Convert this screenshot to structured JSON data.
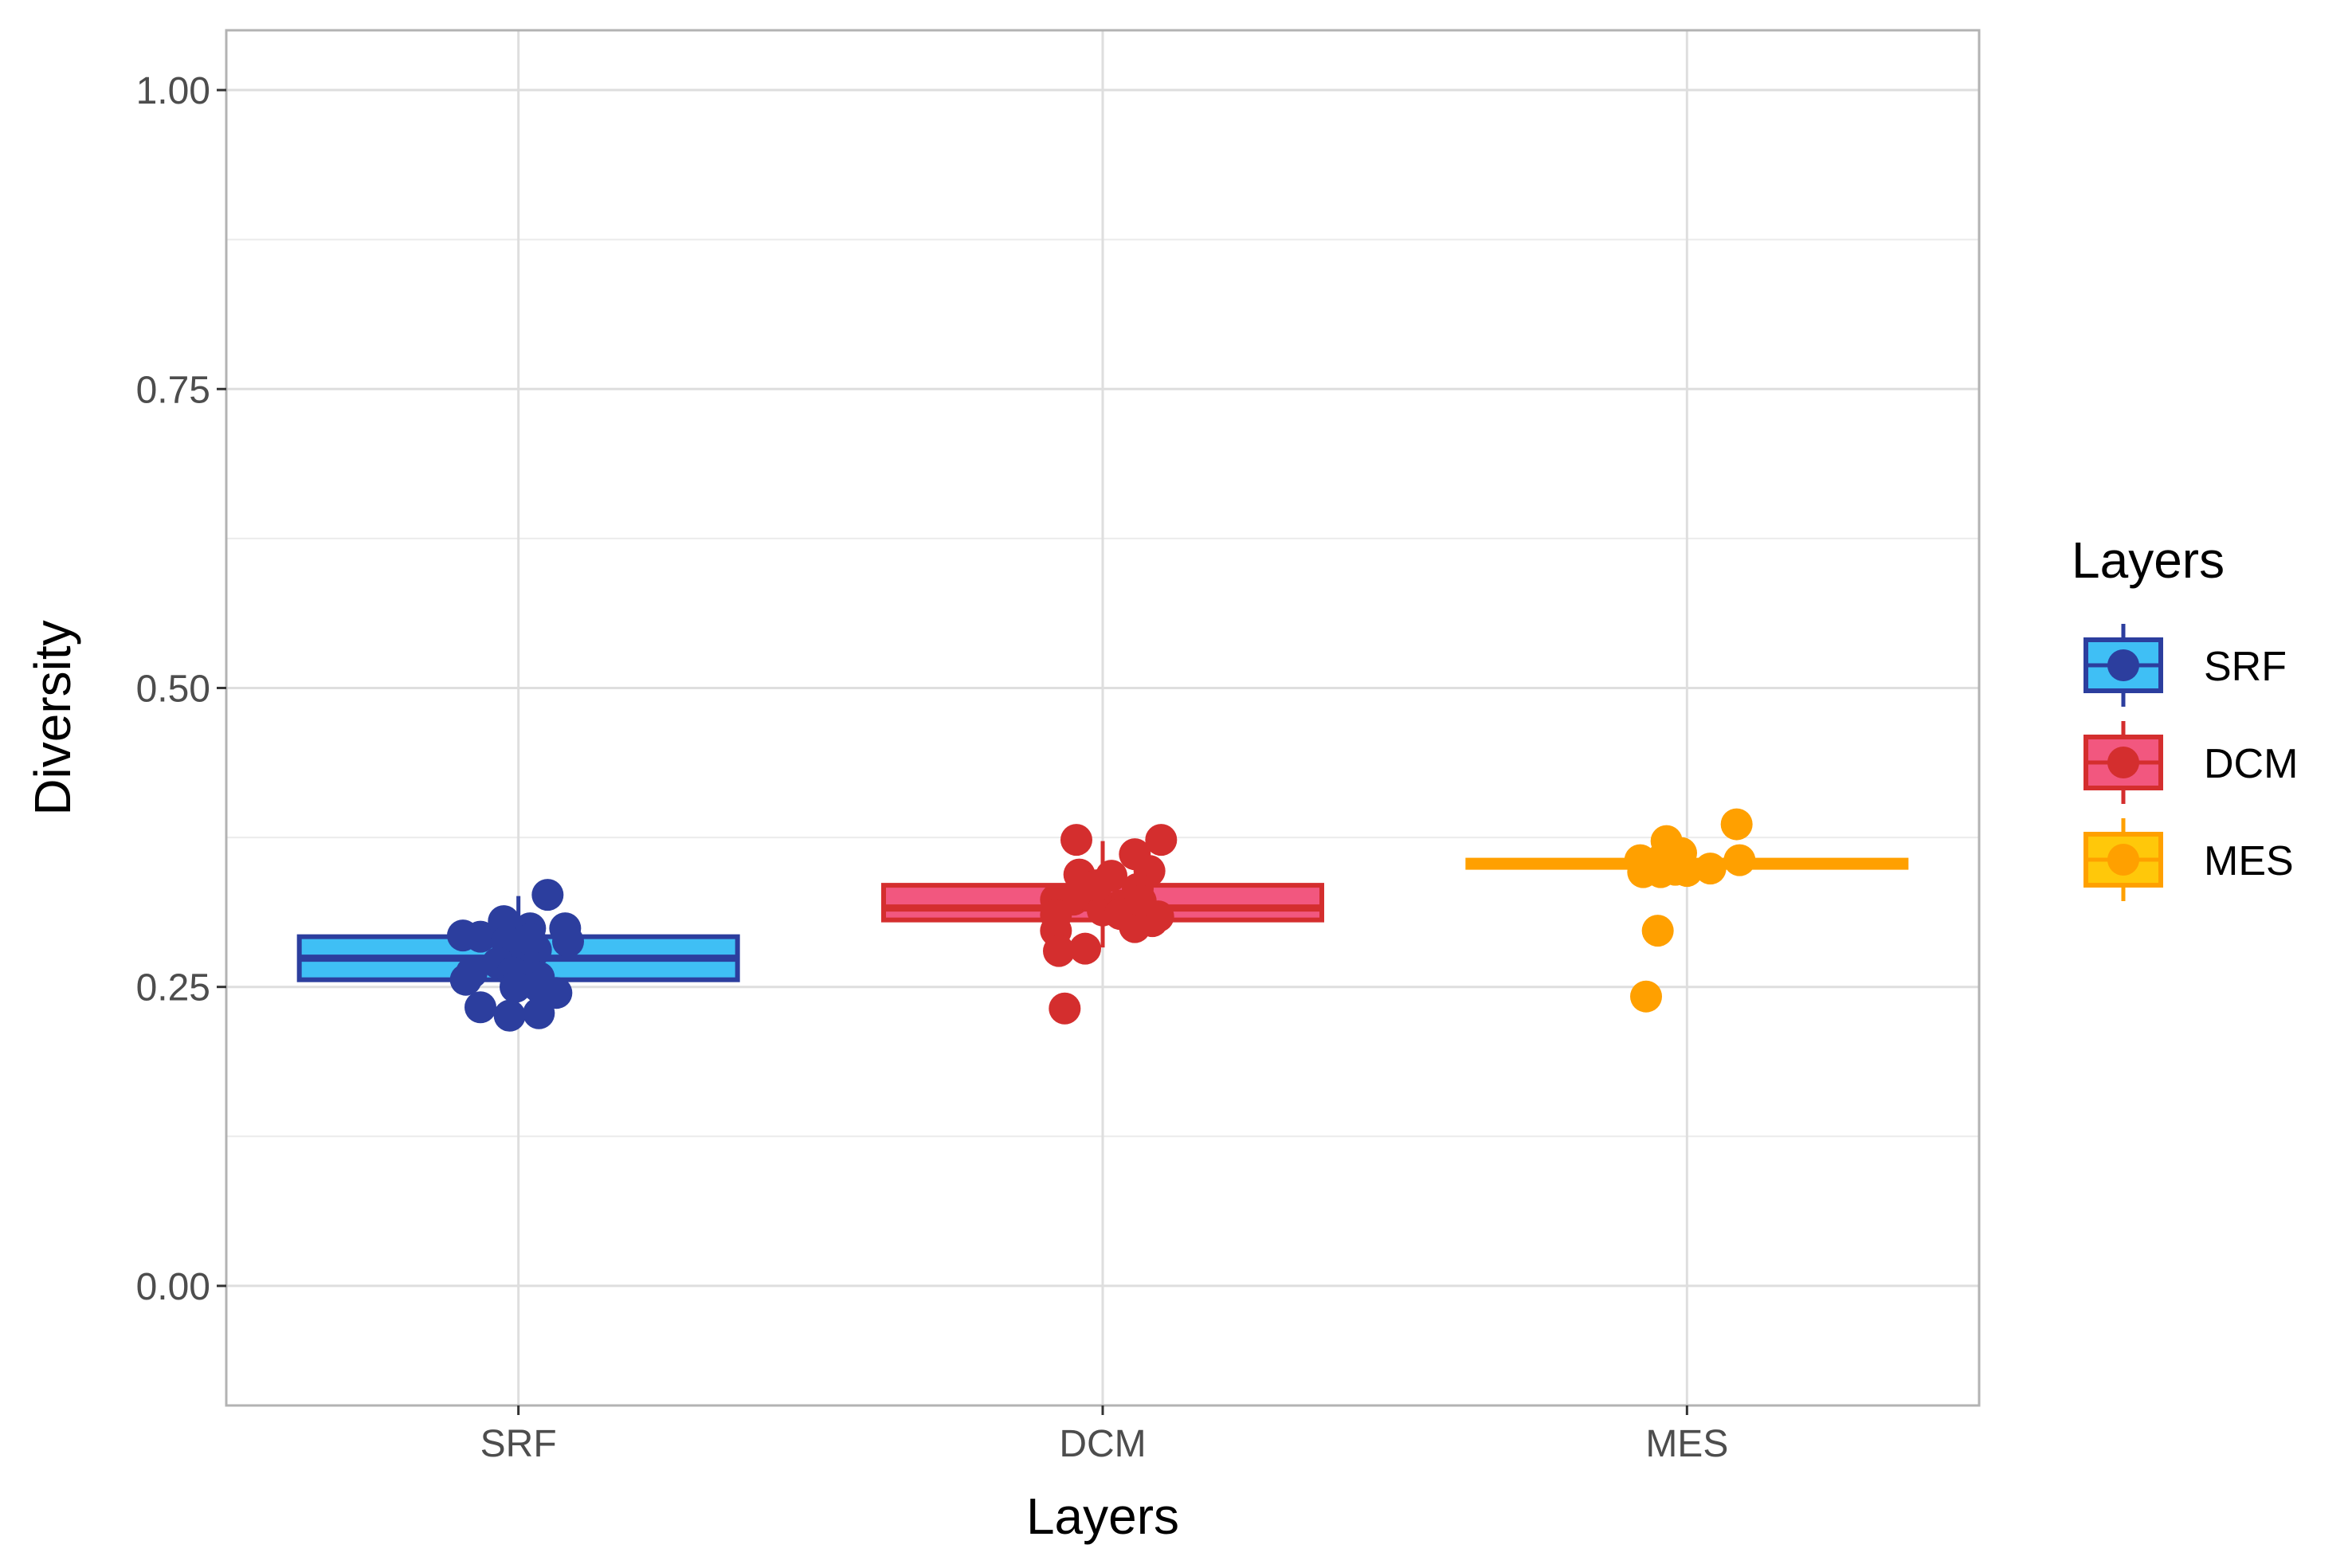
{
  "chart_data": {
    "type": "box",
    "xlabel": "Layers",
    "ylabel": "Diversity",
    "ylim": [
      -0.1,
      1.05
    ],
    "yticks": [
      0.0,
      0.25,
      0.5,
      0.75,
      1.0
    ],
    "ytick_labels": [
      "0.00",
      "0.25",
      "0.50",
      "0.75",
      "1.00"
    ],
    "categories": [
      "SRF",
      "DCM",
      "MES"
    ],
    "grid": true,
    "legend": {
      "title": "Layers",
      "position": "right",
      "entries": [
        "SRF",
        "DCM",
        "MES"
      ]
    },
    "series": [
      {
        "name": "SRF",
        "fill": "#3fbff5",
        "edge": "#2c3e9e",
        "point": "#2c3e9e",
        "box": {
          "whisker_low": 0.255,
          "q1": 0.256,
          "median": 0.274,
          "q3": 0.292,
          "whisker_high": 0.326
        },
        "points": [
          [
            -0.095,
            0.293
          ],
          [
            -0.065,
            0.292
          ],
          [
            -0.025,
            0.305
          ],
          [
            0.02,
            0.299
          ],
          [
            0.08,
            0.299
          ],
          [
            0.05,
            0.327
          ],
          [
            0.085,
            0.288
          ],
          [
            -0.02,
            0.288
          ],
          [
            0.03,
            0.281
          ],
          [
            0.01,
            0.275
          ],
          [
            -0.035,
            0.27
          ],
          [
            -0.01,
            0.262
          ],
          [
            0.035,
            0.258
          ],
          [
            -0.09,
            0.256
          ],
          [
            -0.005,
            0.25
          ],
          [
            0.065,
            0.245
          ],
          [
            0.035,
            0.25
          ],
          [
            -0.065,
            0.233
          ],
          [
            -0.015,
            0.226
          ],
          [
            0.035,
            0.228
          ],
          [
            0.02,
            0.29
          ],
          [
            -0.08,
            0.262
          ]
        ]
      },
      {
        "name": "DCM",
        "fill": "#f2577f",
        "edge": "#d42e2e",
        "point": "#d42e2e",
        "box": {
          "whisker_low": 0.283,
          "q1": 0.306,
          "median": 0.316,
          "q3": 0.335,
          "whisker_high": 0.372
        },
        "points": [
          [
            -0.045,
            0.373
          ],
          [
            0.1,
            0.373
          ],
          [
            0.055,
            0.361
          ],
          [
            -0.04,
            0.344
          ],
          [
            0.015,
            0.343
          ],
          [
            0.08,
            0.347
          ],
          [
            -0.03,
            0.334
          ],
          [
            0.06,
            0.332
          ],
          [
            -0.08,
            0.323
          ],
          [
            -0.05,
            0.323
          ],
          [
            -0.02,
            0.326
          ],
          [
            0.03,
            0.318
          ],
          [
            -0.08,
            0.31
          ],
          [
            0.0,
            0.314
          ],
          [
            0.03,
            0.311
          ],
          [
            0.055,
            0.309
          ],
          [
            0.095,
            0.309
          ],
          [
            0.085,
            0.305
          ],
          [
            0.055,
            0.3
          ],
          [
            -0.08,
            0.297
          ],
          [
            -0.075,
            0.28
          ],
          [
            -0.03,
            0.282
          ],
          [
            -0.065,
            0.232
          ],
          [
            0.065,
            0.322
          ],
          [
            -0.01,
            0.335
          ]
        ]
      },
      {
        "name": "MES",
        "fill": "#ffc80a",
        "edge": "#ffa000",
        "point": "#ffa000",
        "box": {
          "whisker_low": 0.35,
          "q1": 0.35,
          "median": 0.352,
          "q3": 0.356,
          "whisker_high": 0.356
        },
        "points": [
          [
            0.085,
            0.386
          ],
          [
            -0.035,
            0.372
          ],
          [
            -0.01,
            0.362
          ],
          [
            -0.08,
            0.356
          ],
          [
            0.09,
            0.356
          ],
          [
            -0.045,
            0.356
          ],
          [
            -0.015,
            0.351
          ],
          [
            0.04,
            0.349
          ],
          [
            -0.075,
            0.346
          ],
          [
            0.0,
            0.347
          ],
          [
            -0.045,
            0.346
          ],
          [
            -0.02,
            0.348
          ],
          [
            -0.05,
            0.297
          ],
          [
            -0.07,
            0.242
          ]
        ]
      }
    ]
  }
}
